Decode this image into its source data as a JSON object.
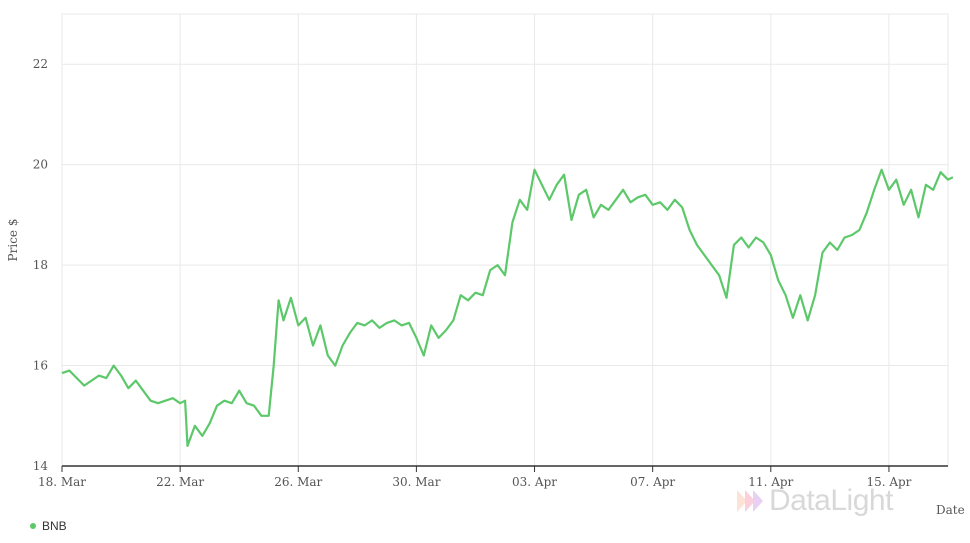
{
  "chart_data": {
    "type": "line",
    "xlabel": "Date",
    "ylabel": "Price $",
    "ylim": [
      14,
      23
    ],
    "yticks": [
      14,
      16,
      18,
      20,
      22
    ],
    "xlim": [
      "2023-03-18",
      "2023-04-17"
    ],
    "xticks": [
      {
        "date": "2023-03-18",
        "label": "18. Mar"
      },
      {
        "date": "2023-03-22",
        "label": "22. Mar"
      },
      {
        "date": "2023-03-26",
        "label": "26. Mar"
      },
      {
        "date": "2023-03-30",
        "label": "30. Mar"
      },
      {
        "date": "2023-04-03",
        "label": "03. Apr"
      },
      {
        "date": "2023-04-07",
        "label": "07. Apr"
      },
      {
        "date": "2023-04-11",
        "label": "11. Apr"
      },
      {
        "date": "2023-04-15",
        "label": "15. Apr"
      }
    ],
    "grid": true,
    "legend_position": "bottom-left",
    "series": [
      {
        "name": "BNB",
        "color": "#5cc86a",
        "points": [
          [
            "2023-03-18 00:00",
            15.85
          ],
          [
            "2023-03-18 06:00",
            15.9
          ],
          [
            "2023-03-18 12:00",
            15.75
          ],
          [
            "2023-03-18 18:00",
            15.6
          ],
          [
            "2023-03-19 00:00",
            15.7
          ],
          [
            "2023-03-19 06:00",
            15.8
          ],
          [
            "2023-03-19 12:00",
            15.75
          ],
          [
            "2023-03-19 18:00",
            16.0
          ],
          [
            "2023-03-20 00:00",
            15.8
          ],
          [
            "2023-03-20 06:00",
            15.55
          ],
          [
            "2023-03-20 12:00",
            15.7
          ],
          [
            "2023-03-20 18:00",
            15.5
          ],
          [
            "2023-03-21 00:00",
            15.3
          ],
          [
            "2023-03-21 06:00",
            15.25
          ],
          [
            "2023-03-21 12:00",
            15.3
          ],
          [
            "2023-03-21 18:00",
            15.35
          ],
          [
            "2023-03-22 00:00",
            15.25
          ],
          [
            "2023-03-22 04:00",
            15.3
          ],
          [
            "2023-03-22 06:00",
            14.4
          ],
          [
            "2023-03-22 12:00",
            14.8
          ],
          [
            "2023-03-22 18:00",
            14.6
          ],
          [
            "2023-03-23 00:00",
            14.85
          ],
          [
            "2023-03-23 06:00",
            15.2
          ],
          [
            "2023-03-23 12:00",
            15.3
          ],
          [
            "2023-03-23 18:00",
            15.25
          ],
          [
            "2023-03-24 00:00",
            15.5
          ],
          [
            "2023-03-24 06:00",
            15.25
          ],
          [
            "2023-03-24 12:00",
            15.2
          ],
          [
            "2023-03-24 18:00",
            15.0
          ],
          [
            "2023-03-25 00:00",
            15.0
          ],
          [
            "2023-03-25 04:00",
            16.0
          ],
          [
            "2023-03-25 08:00",
            17.3
          ],
          [
            "2023-03-25 12:00",
            16.9
          ],
          [
            "2023-03-25 18:00",
            17.35
          ],
          [
            "2023-03-26 00:00",
            16.8
          ],
          [
            "2023-03-26 06:00",
            16.95
          ],
          [
            "2023-03-26 12:00",
            16.4
          ],
          [
            "2023-03-26 18:00",
            16.8
          ],
          [
            "2023-03-27 00:00",
            16.2
          ],
          [
            "2023-03-27 06:00",
            16.0
          ],
          [
            "2023-03-27 12:00",
            16.4
          ],
          [
            "2023-03-27 18:00",
            16.65
          ],
          [
            "2023-03-28 00:00",
            16.85
          ],
          [
            "2023-03-28 06:00",
            16.8
          ],
          [
            "2023-03-28 12:00",
            16.9
          ],
          [
            "2023-03-28 18:00",
            16.75
          ],
          [
            "2023-03-29 00:00",
            16.85
          ],
          [
            "2023-03-29 06:00",
            16.9
          ],
          [
            "2023-03-29 12:00",
            16.8
          ],
          [
            "2023-03-29 18:00",
            16.85
          ],
          [
            "2023-03-30 00:00",
            16.55
          ],
          [
            "2023-03-30 06:00",
            16.2
          ],
          [
            "2023-03-30 12:00",
            16.8
          ],
          [
            "2023-03-30 18:00",
            16.55
          ],
          [
            "2023-03-31 00:00",
            16.7
          ],
          [
            "2023-03-31 06:00",
            16.9
          ],
          [
            "2023-03-31 12:00",
            17.4
          ],
          [
            "2023-03-31 18:00",
            17.3
          ],
          [
            "2023-04-01 00:00",
            17.45
          ],
          [
            "2023-04-01 06:00",
            17.4
          ],
          [
            "2023-04-01 12:00",
            17.9
          ],
          [
            "2023-04-01 18:00",
            18.0
          ],
          [
            "2023-04-02 00:00",
            17.8
          ],
          [
            "2023-04-02 06:00",
            18.85
          ],
          [
            "2023-04-02 12:00",
            19.3
          ],
          [
            "2023-04-02 18:00",
            19.1
          ],
          [
            "2023-04-03 00:00",
            19.9
          ],
          [
            "2023-04-03 06:00",
            19.6
          ],
          [
            "2023-04-03 12:00",
            19.3
          ],
          [
            "2023-04-03 18:00",
            19.6
          ],
          [
            "2023-04-04 00:00",
            19.8
          ],
          [
            "2023-04-04 06:00",
            18.9
          ],
          [
            "2023-04-04 12:00",
            19.4
          ],
          [
            "2023-04-04 18:00",
            19.5
          ],
          [
            "2023-04-05 00:00",
            18.95
          ],
          [
            "2023-04-05 06:00",
            19.2
          ],
          [
            "2023-04-05 12:00",
            19.1
          ],
          [
            "2023-04-05 18:00",
            19.3
          ],
          [
            "2023-04-06 00:00",
            19.5
          ],
          [
            "2023-04-06 06:00",
            19.25
          ],
          [
            "2023-04-06 12:00",
            19.35
          ],
          [
            "2023-04-06 18:00",
            19.4
          ],
          [
            "2023-04-07 00:00",
            19.2
          ],
          [
            "2023-04-07 06:00",
            19.25
          ],
          [
            "2023-04-07 12:00",
            19.1
          ],
          [
            "2023-04-07 18:00",
            19.3
          ],
          [
            "2023-04-08 00:00",
            19.15
          ],
          [
            "2023-04-08 06:00",
            18.7
          ],
          [
            "2023-04-08 12:00",
            18.4
          ],
          [
            "2023-04-08 18:00",
            18.2
          ],
          [
            "2023-04-09 00:00",
            18.0
          ],
          [
            "2023-04-09 06:00",
            17.8
          ],
          [
            "2023-04-09 12:00",
            17.35
          ],
          [
            "2023-04-09 18:00",
            18.4
          ],
          [
            "2023-04-10 00:00",
            18.55
          ],
          [
            "2023-04-10 06:00",
            18.35
          ],
          [
            "2023-04-10 12:00",
            18.55
          ],
          [
            "2023-04-10 18:00",
            18.45
          ],
          [
            "2023-04-11 00:00",
            18.2
          ],
          [
            "2023-04-11 06:00",
            17.7
          ],
          [
            "2023-04-11 12:00",
            17.4
          ],
          [
            "2023-04-11 18:00",
            16.95
          ],
          [
            "2023-04-12 00:00",
            17.4
          ],
          [
            "2023-04-12 06:00",
            16.9
          ],
          [
            "2023-04-12 12:00",
            17.4
          ],
          [
            "2023-04-12 18:00",
            18.25
          ],
          [
            "2023-04-13 00:00",
            18.45
          ],
          [
            "2023-04-13 06:00",
            18.3
          ],
          [
            "2023-04-13 12:00",
            18.55
          ],
          [
            "2023-04-13 18:00",
            18.6
          ],
          [
            "2023-04-14 00:00",
            18.7
          ],
          [
            "2023-04-14 06:00",
            19.05
          ],
          [
            "2023-04-14 12:00",
            19.5
          ],
          [
            "2023-04-14 18:00",
            19.9
          ],
          [
            "2023-04-15 00:00",
            19.5
          ],
          [
            "2023-04-15 06:00",
            19.7
          ],
          [
            "2023-04-15 12:00",
            19.2
          ],
          [
            "2023-04-15 18:00",
            19.5
          ],
          [
            "2023-04-16 00:00",
            18.95
          ],
          [
            "2023-04-16 06:00",
            19.6
          ],
          [
            "2023-04-16 12:00",
            19.5
          ],
          [
            "2023-04-16 18:00",
            19.85
          ],
          [
            "2023-04-17 00:00",
            19.7
          ],
          [
            "2023-04-17 04:00",
            19.75
          ]
        ]
      }
    ]
  },
  "watermark": {
    "text": "DataLight"
  }
}
